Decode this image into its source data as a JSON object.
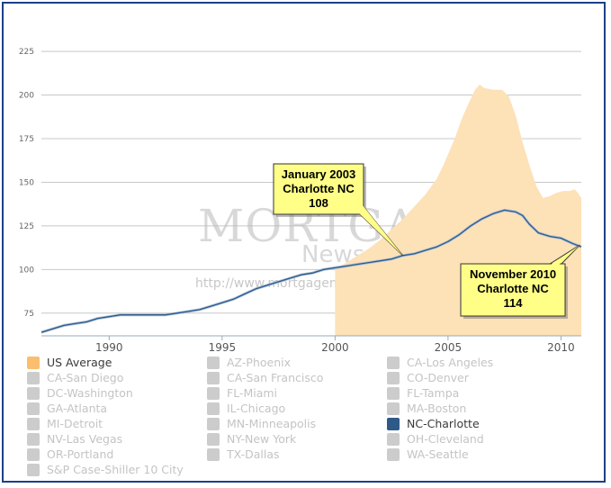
{
  "chart_data": {
    "type": "area",
    "y_ticks": [
      75,
      100,
      125,
      150,
      175,
      200,
      225
    ],
    "x_ticks": [
      1990,
      1995,
      2000,
      2005,
      2010
    ],
    "xlim": [
      1987.0,
      2010.9
    ],
    "ylim": [
      62,
      240
    ],
    "grid": true,
    "series": [
      {
        "name": "US Average",
        "kind": "area",
        "color": "#fde1b7",
        "points": [
          [
            2000.0,
            100
          ],
          [
            2000.5,
            104
          ],
          [
            2001.0,
            108
          ],
          [
            2001.5,
            112
          ],
          [
            2002.0,
            117
          ],
          [
            2002.5,
            123
          ],
          [
            2003.0,
            129
          ],
          [
            2003.5,
            136
          ],
          [
            2004.0,
            143
          ],
          [
            2004.5,
            152
          ],
          [
            2004.8,
            160
          ],
          [
            2005.0,
            166
          ],
          [
            2005.3,
            175
          ],
          [
            2005.6,
            186
          ],
          [
            2005.9,
            195
          ],
          [
            2006.2,
            203
          ],
          [
            2006.4,
            206
          ],
          [
            2006.6,
            204
          ],
          [
            2007.0,
            203
          ],
          [
            2007.4,
            203
          ],
          [
            2007.7,
            199
          ],
          [
            2008.0,
            188
          ],
          [
            2008.3,
            173
          ],
          [
            2008.6,
            160
          ],
          [
            2008.9,
            148
          ],
          [
            2009.2,
            141
          ],
          [
            2009.5,
            142
          ],
          [
            2009.8,
            144
          ],
          [
            2010.1,
            145
          ],
          [
            2010.4,
            145
          ],
          [
            2010.6,
            146
          ],
          [
            2010.75,
            144
          ],
          [
            2010.9,
            141
          ]
        ]
      },
      {
        "name": "NC-Charlotte",
        "kind": "line",
        "color": "#2e5a8a",
        "points": [
          [
            1987.0,
            64
          ],
          [
            1987.5,
            66
          ],
          [
            1988.0,
            68
          ],
          [
            1988.5,
            69
          ],
          [
            1989.0,
            70
          ],
          [
            1989.5,
            72
          ],
          [
            1990.0,
            73
          ],
          [
            1990.5,
            74
          ],
          [
            1991.0,
            74
          ],
          [
            1991.5,
            74
          ],
          [
            1992.0,
            74
          ],
          [
            1992.5,
            74
          ],
          [
            1993.0,
            75
          ],
          [
            1993.5,
            76
          ],
          [
            1994.0,
            77
          ],
          [
            1994.5,
            79
          ],
          [
            1995.0,
            81
          ],
          [
            1995.5,
            83
          ],
          [
            1996.0,
            86
          ],
          [
            1996.5,
            89
          ],
          [
            1997.0,
            91
          ],
          [
            1997.5,
            93
          ],
          [
            1998.0,
            95
          ],
          [
            1998.5,
            97
          ],
          [
            1999.0,
            98
          ],
          [
            1999.5,
            100
          ],
          [
            2000.0,
            101
          ],
          [
            2000.5,
            102
          ],
          [
            2001.0,
            103
          ],
          [
            2001.5,
            104
          ],
          [
            2002.0,
            105
          ],
          [
            2002.5,
            106
          ],
          [
            2003.0,
            108
          ],
          [
            2003.5,
            109
          ],
          [
            2004.0,
            111
          ],
          [
            2004.5,
            113
          ],
          [
            2005.0,
            116
          ],
          [
            2005.5,
            120
          ],
          [
            2006.0,
            125
          ],
          [
            2006.5,
            129
          ],
          [
            2007.0,
            132
          ],
          [
            2007.5,
            134
          ],
          [
            2008.0,
            133
          ],
          [
            2008.3,
            131
          ],
          [
            2008.6,
            126
          ],
          [
            2009.0,
            121
          ],
          [
            2009.5,
            119
          ],
          [
            2010.0,
            118
          ],
          [
            2010.5,
            115
          ],
          [
            2010.9,
            113
          ]
        ]
      }
    ],
    "annotations": [
      {
        "lines": [
          "January 2003",
          "Charlotte NC",
          "108"
        ],
        "x": 2003.0,
        "y": 108
      },
      {
        "lines": [
          "November 2010",
          "Charlotte NC",
          "114"
        ],
        "x": 2010.83,
        "y": 114
      }
    ]
  },
  "watermark": {
    "big": "MORTGAGE",
    "mid": "News Daily",
    "url": "http://www.mortgagenewsdaily.com"
  },
  "legend": {
    "items": [
      {
        "label": "US Average",
        "color": "#f9bf6f",
        "active": true,
        "icon": "legend-swatch"
      },
      {
        "label": "AZ-Phoenix",
        "color": "#cccccc",
        "active": false,
        "icon": "legend-swatch"
      },
      {
        "label": "CA-Los Angeles",
        "color": "#cccccc",
        "active": false,
        "icon": "legend-swatch"
      },
      {
        "label": "CA-San Diego",
        "color": "#cccccc",
        "active": false,
        "icon": "legend-swatch"
      },
      {
        "label": "CA-San Francisco",
        "color": "#cccccc",
        "active": false,
        "icon": "legend-swatch"
      },
      {
        "label": "CO-Denver",
        "color": "#cccccc",
        "active": false,
        "icon": "legend-swatch"
      },
      {
        "label": "DC-Washington",
        "color": "#cccccc",
        "active": false,
        "icon": "legend-swatch"
      },
      {
        "label": "FL-Miami",
        "color": "#cccccc",
        "active": false,
        "icon": "legend-swatch"
      },
      {
        "label": "FL-Tampa",
        "color": "#cccccc",
        "active": false,
        "icon": "legend-swatch"
      },
      {
        "label": "GA-Atlanta",
        "color": "#cccccc",
        "active": false,
        "icon": "legend-swatch"
      },
      {
        "label": "IL-Chicago",
        "color": "#cccccc",
        "active": false,
        "icon": "legend-swatch"
      },
      {
        "label": "MA-Boston",
        "color": "#cccccc",
        "active": false,
        "icon": "legend-swatch"
      },
      {
        "label": "MI-Detroit",
        "color": "#cccccc",
        "active": false,
        "icon": "legend-swatch"
      },
      {
        "label": "MN-Minneapolis",
        "color": "#cccccc",
        "active": false,
        "icon": "legend-swatch"
      },
      {
        "label": "NC-Charlotte",
        "color": "#2e5a8a",
        "active": true,
        "icon": "legend-swatch"
      },
      {
        "label": "NV-Las Vegas",
        "color": "#cccccc",
        "active": false,
        "icon": "legend-swatch"
      },
      {
        "label": "NY-New York",
        "color": "#cccccc",
        "active": false,
        "icon": "legend-swatch"
      },
      {
        "label": "OH-Cleveland",
        "color": "#cccccc",
        "active": false,
        "icon": "legend-swatch"
      },
      {
        "label": "OR-Portland",
        "color": "#cccccc",
        "active": false,
        "icon": "legend-swatch"
      },
      {
        "label": "TX-Dallas",
        "color": "#cccccc",
        "active": false,
        "icon": "legend-swatch"
      },
      {
        "label": "WA-Seattle",
        "color": "#cccccc",
        "active": false,
        "icon": "legend-swatch"
      },
      {
        "label": "S&P Case-Shiller 10 City",
        "color": "#cccccc",
        "active": false,
        "icon": "legend-swatch"
      }
    ]
  }
}
